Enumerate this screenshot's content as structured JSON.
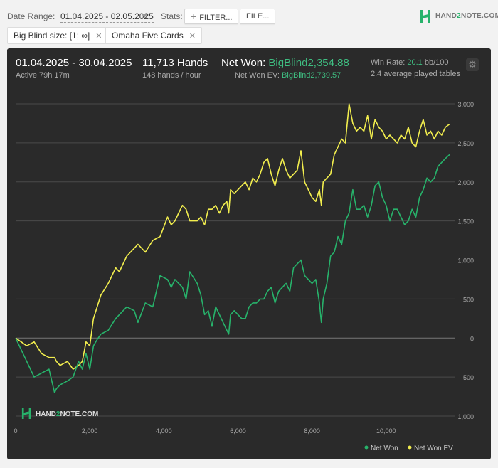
{
  "toolbar": {
    "date_range_label": "Date Range:",
    "date_range_value": "01.04.2025 - 02.05.2025",
    "stats_label": "Stats:",
    "filter_label": "FILTER...",
    "file_label": "FILE..."
  },
  "logo": {
    "pre": "HAND",
    "two": "2",
    "post": "NOTE.COM"
  },
  "chips": [
    {
      "label": "Big Blind size: [1; ∞]"
    },
    {
      "label": "Omaha Five Cards"
    }
  ],
  "summary": {
    "period": "01.04.2025 - 30.04.2025",
    "active": "Active 79h 17m",
    "hands": "11,713 Hands",
    "hands_per_hour": "148 hands / hour",
    "net_won_label": "Net Won:",
    "net_won_value": "BigBlind2,354.88",
    "net_won_ev_label": "Net Won  EV:",
    "net_won_ev_value": "BigBlind2,739.57",
    "win_rate_label": "Win Rate:",
    "win_rate_value": "20.1",
    "win_rate_unit": "bb/100",
    "avg_tables": "2.4 average played tables"
  },
  "watermark": {
    "pre": "HAND",
    "two": "2",
    "post": "NOTE.COM"
  },
  "colors": {
    "net_won": "#27b36b",
    "net_won_ev": "#f2ee4e",
    "panel": "#2a2a2a",
    "grid": "#4a4a4a"
  },
  "chart_data": {
    "type": "line",
    "title": "",
    "xlabel": "",
    "ylabel": "",
    "xlim": [
      0,
      11713
    ],
    "ylim": [
      -1000,
      3000
    ],
    "x_ticks": [
      0,
      2000,
      4000,
      6000,
      8000,
      10000
    ],
    "x_tick_labels": [
      "0",
      "2,000",
      "4,000",
      "6,000",
      "8,000",
      "10,000"
    ],
    "y_ticks": [
      3000,
      2500,
      2000,
      1500,
      1000,
      500,
      0,
      -500,
      -1000
    ],
    "y_tick_labels": [
      "3,000",
      "2,500",
      "2,000",
      "1,500",
      "1,000",
      "500",
      "0",
      "500",
      "1,000"
    ],
    "grid": true,
    "legend": "bottom-right",
    "series": [
      {
        "name": "Net Won",
        "color": "#27b36b",
        "x": [
          0,
          150,
          300,
          500,
          700,
          900,
          1050,
          1100,
          1200,
          1400,
          1550,
          1700,
          1800,
          1900,
          2000,
          2100,
          2200,
          2300,
          2500,
          2700,
          2800,
          3000,
          3200,
          3300,
          3500,
          3700,
          3900,
          4100,
          4200,
          4300,
          4400,
          4500,
          4600,
          4700,
          4900,
          5000,
          5100,
          5200,
          5300,
          5400,
          5500,
          5600,
          5700,
          5750,
          5800,
          5900,
          6000,
          6100,
          6200,
          6300,
          6400,
          6500,
          6600,
          6700,
          6800,
          6900,
          7000,
          7100,
          7200,
          7300,
          7400,
          7500,
          7600,
          7700,
          7800,
          7900,
          8000,
          8100,
          8200,
          8250,
          8300,
          8400,
          8500,
          8600,
          8700,
          8800,
          8900,
          9000,
          9100,
          9200,
          9300,
          9400,
          9500,
          9600,
          9700,
          9800,
          9900,
          10000,
          10100,
          10200,
          10300,
          10400,
          10500,
          10600,
          10700,
          10800,
          10900,
          11000,
          11100,
          11200,
          11300,
          11400,
          11500,
          11600,
          11713
        ],
        "y": [
          0,
          -150,
          -300,
          -500,
          -450,
          -400,
          -700,
          -650,
          -600,
          -550,
          -500,
          -300,
          -400,
          -200,
          -400,
          -100,
          -20,
          50,
          100,
          250,
          300,
          400,
          350,
          200,
          450,
          400,
          800,
          750,
          650,
          750,
          700,
          650,
          500,
          850,
          700,
          550,
          300,
          350,
          150,
          400,
          300,
          200,
          100,
          50,
          300,
          350,
          300,
          250,
          250,
          400,
          450,
          450,
          500,
          500,
          600,
          650,
          450,
          600,
          650,
          700,
          600,
          900,
          950,
          1000,
          800,
          750,
          700,
          750,
          450,
          200,
          500,
          700,
          1050,
          1100,
          1300,
          1200,
          1500,
          1600,
          1900,
          1650,
          1650,
          1700,
          1550,
          1700,
          1950,
          2000,
          1800,
          1700,
          1500,
          1650,
          1650,
          1550,
          1450,
          1500,
          1650,
          1550,
          1800,
          1900,
          2050,
          2000,
          2050,
          2200,
          2250,
          2300,
          2350
        ]
      },
      {
        "name": "Net Won  EV",
        "color": "#f2ee4e",
        "x": [
          0,
          150,
          300,
          500,
          700,
          900,
          1050,
          1100,
          1200,
          1400,
          1550,
          1700,
          1800,
          1900,
          2000,
          2100,
          2200,
          2300,
          2500,
          2700,
          2800,
          3000,
          3200,
          3300,
          3500,
          3700,
          3900,
          4100,
          4200,
          4300,
          4400,
          4500,
          4600,
          4700,
          4900,
          5000,
          5100,
          5200,
          5300,
          5400,
          5500,
          5600,
          5700,
          5750,
          5800,
          5900,
          6000,
          6100,
          6200,
          6300,
          6400,
          6500,
          6600,
          6700,
          6800,
          6900,
          7000,
          7100,
          7200,
          7300,
          7400,
          7500,
          7600,
          7700,
          7800,
          7900,
          8000,
          8100,
          8200,
          8250,
          8300,
          8400,
          8500,
          8600,
          8700,
          8800,
          8900,
          9000,
          9100,
          9200,
          9300,
          9400,
          9500,
          9600,
          9700,
          9800,
          9900,
          10000,
          10100,
          10200,
          10300,
          10400,
          10500,
          10600,
          10700,
          10800,
          10900,
          11000,
          11100,
          11200,
          11300,
          11400,
          11500,
          11600,
          11713
        ],
        "y": [
          0,
          -50,
          -100,
          -50,
          -200,
          -250,
          -250,
          -300,
          -350,
          -300,
          -400,
          -350,
          -300,
          -50,
          -100,
          250,
          400,
          550,
          700,
          900,
          850,
          1050,
          1150,
          1200,
          1100,
          1250,
          1300,
          1550,
          1450,
          1500,
          1600,
          1700,
          1650,
          1500,
          1500,
          1550,
          1450,
          1650,
          1650,
          1700,
          1600,
          1700,
          1750,
          1600,
          1900,
          1850,
          1900,
          1950,
          2000,
          1900,
          2050,
          2000,
          2100,
          2250,
          2300,
          2100,
          1950,
          2150,
          2300,
          2150,
          2050,
          2100,
          2150,
          2400,
          2000,
          1900,
          1800,
          1750,
          1900,
          1700,
          2000,
          2050,
          2100,
          2350,
          2450,
          2550,
          2500,
          3000,
          2750,
          2650,
          2700,
          2650,
          2850,
          2550,
          2800,
          2700,
          2650,
          2550,
          2600,
          2550,
          2500,
          2600,
          2550,
          2700,
          2500,
          2450,
          2650,
          2800,
          2600,
          2650,
          2550,
          2650,
          2600,
          2700,
          2740
        ]
      }
    ]
  }
}
